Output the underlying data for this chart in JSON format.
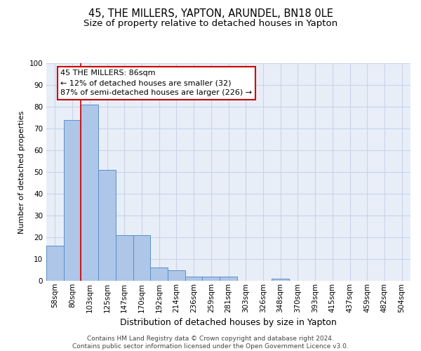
{
  "title1": "45, THE MILLERS, YAPTON, ARUNDEL, BN18 0LE",
  "title2": "Size of property relative to detached houses in Yapton",
  "xlabel": "Distribution of detached houses by size in Yapton",
  "ylabel": "Number of detached properties",
  "categories": [
    "58sqm",
    "80sqm",
    "103sqm",
    "125sqm",
    "147sqm",
    "170sqm",
    "192sqm",
    "214sqm",
    "236sqm",
    "259sqm",
    "281sqm",
    "303sqm",
    "326sqm",
    "348sqm",
    "370sqm",
    "393sqm",
    "415sqm",
    "437sqm",
    "459sqm",
    "482sqm",
    "504sqm"
  ],
  "values": [
    16,
    74,
    81,
    51,
    21,
    21,
    6,
    5,
    2,
    2,
    2,
    0,
    0,
    1,
    0,
    0,
    0,
    0,
    0,
    0,
    0
  ],
  "bar_color": "#aec6e8",
  "bar_edge_color": "#5b8fc9",
  "grid_color": "#c8d4e8",
  "background_color": "#e8eef8",
  "vline_color": "#cc0000",
  "annotation_box_text": "45 THE MILLERS: 86sqm\n← 12% of detached houses are smaller (32)\n87% of semi-detached houses are larger (226) →",
  "box_edge_color": "#cc0000",
  "footer_text": "Contains HM Land Registry data © Crown copyright and database right 2024.\nContains public sector information licensed under the Open Government Licence v3.0.",
  "ylim": [
    0,
    100
  ],
  "title1_fontsize": 10.5,
  "title2_fontsize": 9.5,
  "xlabel_fontsize": 9,
  "ylabel_fontsize": 8,
  "tick_fontsize": 7.5,
  "annotation_fontsize": 8,
  "footer_fontsize": 6.5
}
